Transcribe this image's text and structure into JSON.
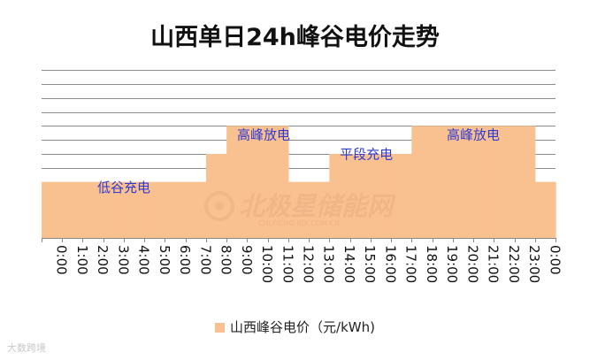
{
  "chart_data": {
    "type": "area",
    "title": "山西单日24h峰谷电价走势",
    "categories": [
      "0:00",
      "1:00",
      "2:00",
      "3:00",
      "4:00",
      "5:00",
      "6:00",
      "7:00",
      "8:00",
      "9:00",
      "10:00",
      "11:00",
      "12:00",
      "13:00",
      "14:00",
      "15:00",
      "16:00",
      "17:00",
      "18:00",
      "19:00",
      "20:00",
      "21:00",
      "22:00",
      "23:00",
      "0:00"
    ],
    "series": [
      {
        "name": "山西峰谷电价（元/kWh)",
        "color": "#f9c18f",
        "values": [
          2,
          2,
          2,
          2,
          2,
          2,
          2,
          2,
          3,
          4,
          4,
          4,
          2,
          2,
          3,
          3,
          3,
          3,
          4,
          4,
          4,
          4,
          4,
          4,
          2
        ]
      }
    ],
    "ylim": [
      0,
      6
    ],
    "grid": true,
    "legend_position": "bottom",
    "annotations": [
      {
        "text": "低谷充电",
        "x": 3.5,
        "y": 1.8
      },
      {
        "text": "高峰放电",
        "x": 10.3,
        "y": 3.68
      },
      {
        "text": "平段充电",
        "x": 15.3,
        "y": 2.98
      },
      {
        "text": "高峰放电",
        "x": 20.5,
        "y": 3.68
      }
    ],
    "annotation_color": "#2e3ad6"
  },
  "watermarks": {
    "center": "北极星储能网",
    "center_sub": "CHUNENG.BJX.COM.CN",
    "bottom": "大数跨境"
  }
}
